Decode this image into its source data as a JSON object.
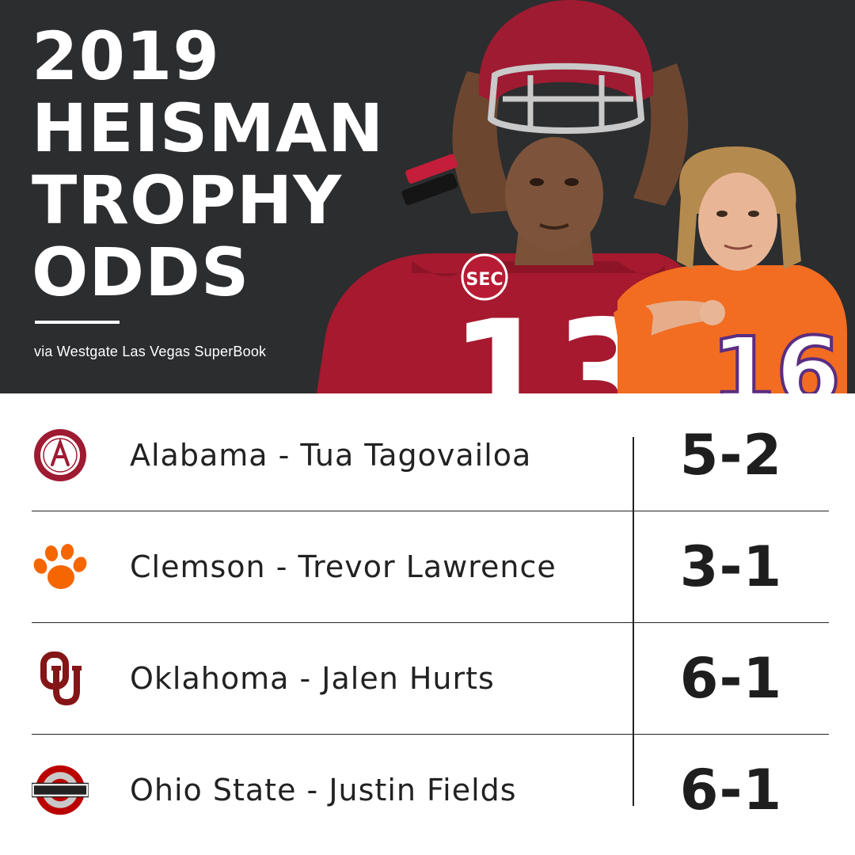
{
  "header": {
    "title_lines": [
      "2019",
      "HEISMAN",
      "TROPHY",
      "ODDS"
    ],
    "source": "via Westgate Las Vegas SuperBook"
  },
  "photo": {
    "left_jersey_number": "13",
    "right_jersey_number": "16",
    "left_patch": "SEC"
  },
  "rows": [
    {
      "team": "Alabama",
      "label": "Alabama - Tua Tagovailoa",
      "odds": "5-2",
      "logo": "alabama-logo",
      "color": "#9e1b32"
    },
    {
      "team": "Clemson",
      "label": "Clemson - Trevor Lawrence",
      "odds": "3-1",
      "logo": "paw-logo",
      "color": "#f56600"
    },
    {
      "team": "Oklahoma",
      "label": "Oklahoma - Jalen Hurts",
      "odds": "6-1",
      "logo": "ou-logo",
      "color": "#841617"
    },
    {
      "team": "Ohio State",
      "label": "Ohio State - Justin Fields",
      "odds": "6-1",
      "logo": "ohio-state-logo",
      "color": "#bb0000"
    }
  ],
  "colors": {
    "header_bg": "#2b2d2f",
    "text": "#222222",
    "crimson": "#9e1b32",
    "orange": "#f56600"
  }
}
